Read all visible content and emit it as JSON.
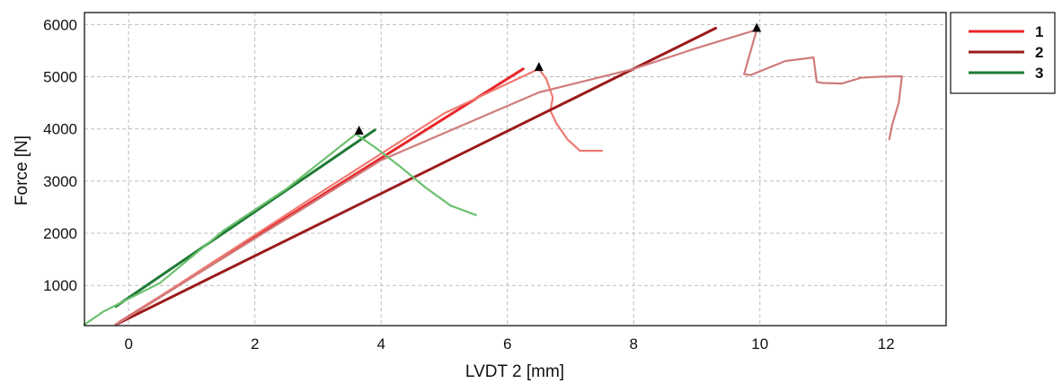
{
  "chart_data": {
    "type": "line",
    "title": "",
    "xlabel": "LVDT 2 [mm]",
    "ylabel": "Force [N]",
    "xlim": [
      -0.7,
      12.95
    ],
    "ylim": [
      230,
      6230
    ],
    "xticks": [
      0,
      2,
      4,
      6,
      8,
      10,
      12
    ],
    "yticks": [
      1000,
      2000,
      3000,
      4000,
      5000,
      6000
    ],
    "grid": true,
    "legend_position": "outside-right",
    "legend": [
      {
        "label": "1",
        "color": "#e8262a"
      },
      {
        "label": "2",
        "color": "#9b1b1b"
      },
      {
        "label": "3",
        "color": "#1f7a35"
      }
    ],
    "series": [
      {
        "name": "1",
        "role": "line",
        "color": "#e8262a",
        "points": [
          [
            -0.15,
            290
          ],
          [
            6.25,
            5150
          ]
        ]
      },
      {
        "name": "1",
        "role": "curve",
        "color": "#f07a72",
        "points": [
          [
            -0.15,
            280
          ],
          [
            3.0,
            2750
          ],
          [
            5.0,
            4300
          ],
          [
            6.5,
            5150
          ],
          [
            6.62,
            4950
          ],
          [
            6.72,
            4600
          ],
          [
            6.68,
            4350
          ],
          [
            6.78,
            4100
          ],
          [
            6.95,
            3800
          ],
          [
            7.15,
            3580
          ],
          [
            7.4,
            3580
          ],
          [
            7.5,
            3580
          ]
        ]
      },
      {
        "name": "2",
        "role": "line",
        "color": "#9b1b1b",
        "points": [
          [
            -0.2,
            250
          ],
          [
            9.3,
            5930
          ]
        ]
      },
      {
        "name": "2",
        "role": "curve",
        "color": "#cf7c7c",
        "points": [
          [
            -0.2,
            250
          ],
          [
            4.0,
            3400
          ],
          [
            6.5,
            4700
          ],
          [
            8.0,
            5150
          ],
          [
            9.0,
            5550
          ],
          [
            9.95,
            5900
          ],
          [
            9.75,
            5050
          ],
          [
            9.85,
            5030
          ],
          [
            10.4,
            5300
          ],
          [
            10.85,
            5370
          ],
          [
            10.9,
            4900
          ],
          [
            11.0,
            4880
          ],
          [
            11.3,
            4870
          ],
          [
            11.6,
            4980
          ],
          [
            11.9,
            5000
          ],
          [
            12.25,
            5010
          ],
          [
            12.2,
            4500
          ],
          [
            12.1,
            4100
          ],
          [
            12.05,
            3800
          ]
        ]
      },
      {
        "name": "3",
        "role": "line",
        "color": "#1f7a35",
        "points": [
          [
            -0.2,
            600
          ],
          [
            3.9,
            3980
          ]
        ]
      },
      {
        "name": "3",
        "role": "curve",
        "color": "#6cc06e",
        "points": [
          [
            -0.7,
            250
          ],
          [
            -0.4,
            500
          ],
          [
            0.5,
            1050
          ],
          [
            1.5,
            2050
          ],
          [
            2.5,
            2850
          ],
          [
            3.6,
            3900
          ],
          [
            3.72,
            3800
          ],
          [
            3.9,
            3650
          ],
          [
            4.3,
            3280
          ],
          [
            4.7,
            2880
          ],
          [
            5.1,
            2530
          ],
          [
            5.5,
            2350
          ]
        ]
      }
    ],
    "markers": [
      {
        "x": 3.65,
        "y": 3960,
        "symbol": "triangle"
      },
      {
        "x": 6.5,
        "y": 5180,
        "symbol": "triangle"
      },
      {
        "x": 9.95,
        "y": 5930,
        "symbol": "triangle"
      }
    ]
  }
}
